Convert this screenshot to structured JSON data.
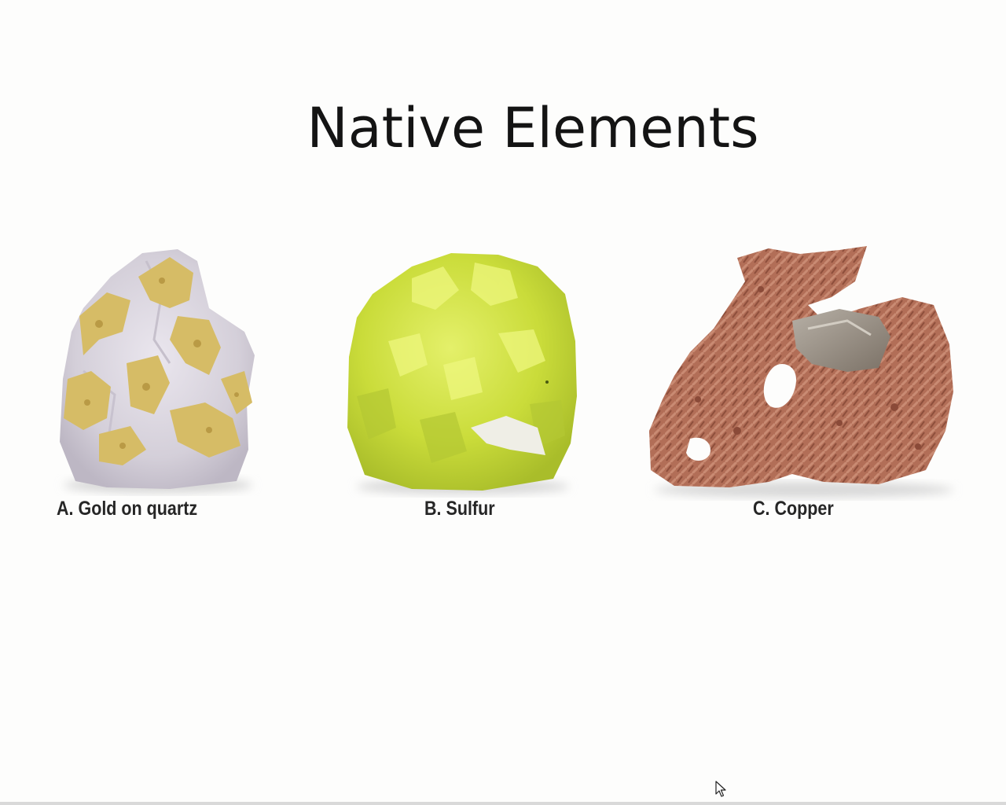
{
  "slide": {
    "title": "Native Elements",
    "specimens": [
      {
        "id": "gold",
        "caption": "A. Gold on quartz",
        "colors": {
          "base": "#d8d3dc",
          "accent": "#d9bf6a"
        }
      },
      {
        "id": "sulfur",
        "caption": "B. Sulfur",
        "colors": {
          "base": "#cfe03c",
          "accent": "#e6f36a"
        }
      },
      {
        "id": "copper",
        "caption": "C. Copper",
        "colors": {
          "base": "#b5715a",
          "accent": "#8c8074"
        }
      }
    ]
  },
  "cursor": {
    "icon": "mouse-pointer-icon"
  }
}
